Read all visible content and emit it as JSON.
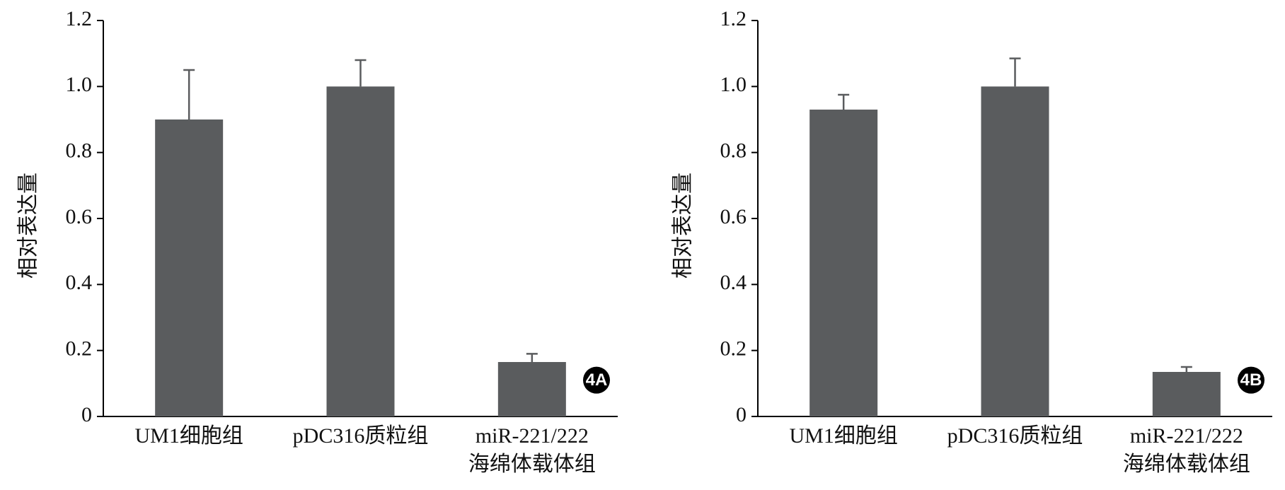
{
  "chart_data": [
    {
      "type": "bar",
      "ylabel": "相对表达量",
      "panel_label": "4A",
      "categories": [
        "UM1细胞组",
        "pDC316质粒组",
        "miR-221/222\n海绵体载体组"
      ],
      "series": [
        {
          "color": "#5a5c5e",
          "values": [
            0.9,
            1.0,
            0.165
          ],
          "errors": [
            0.15,
            0.08,
            0.025
          ]
        }
      ],
      "ylim": [
        0,
        1.2
      ],
      "yticks": [
        0,
        0.2,
        0.4,
        0.6,
        0.8,
        {
          "value": 1,
          "label": "1.0"
        },
        1.2
      ]
    },
    {
      "type": "bar",
      "ylabel": "相对表达量",
      "panel_label": "4B",
      "categories": [
        "UM1细胞组",
        "pDC316质粒组",
        "miR-221/222\n海绵体载体组"
      ],
      "series": [
        {
          "color": "#5a5c5e",
          "values": [
            0.93,
            1.0,
            0.135
          ],
          "errors": [
            0.045,
            0.085,
            0.015
          ]
        }
      ],
      "ylim": [
        0,
        1.2
      ],
      "yticks": [
        0,
        0.2,
        0.4,
        0.6,
        0.8,
        {
          "value": 1,
          "label": "1.0"
        },
        1.2
      ]
    }
  ]
}
